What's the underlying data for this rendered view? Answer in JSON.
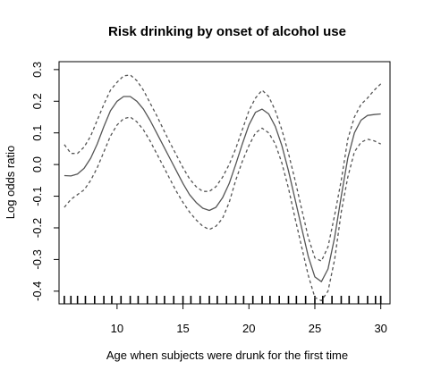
{
  "chart_data": {
    "type": "line",
    "title": "Risk drinking by onset of alcohol use",
    "xlabel": "Age when subjects were drunk for the first time",
    "ylabel": "Log odds ratio",
    "xlim": [
      5.6,
      30.7
    ],
    "ylim": [
      -0.44,
      0.325
    ],
    "x_ticks": [
      10,
      15,
      20,
      25,
      30
    ],
    "x_tick_labels": [
      "10",
      "15",
      "20",
      "25",
      "30"
    ],
    "y_ticks": [
      -0.4,
      -0.3,
      -0.2,
      -0.1,
      0.0,
      0.1,
      0.2,
      0.3
    ],
    "y_tick_labels": [
      "-0.4",
      "-0.3",
      "-0.2",
      "-0.1",
      "0.0",
      "0.1",
      "0.2",
      "0.3"
    ],
    "grid": false,
    "legend": "none",
    "rug_x": [
      6,
      6.5,
      7,
      7.6,
      8.3,
      9,
      9.6,
      10.3,
      11,
      11.6,
      12.3,
      13,
      13.6,
      14.3,
      15,
      15.6,
      16.3,
      17,
      17.6,
      18.3,
      19,
      19.6,
      20.3,
      21,
      21.6,
      22.3,
      23,
      23.6,
      24.3,
      25,
      25.6,
      26.3,
      27,
      27.6,
      28.3,
      29,
      29.6,
      30
    ],
    "series": [
      {
        "style": "solid",
        "color": "#555555",
        "x": [
          6,
          6.5,
          7,
          7.5,
          8,
          8.5,
          9,
          9.5,
          10,
          10.5,
          11,
          11.5,
          12,
          12.5,
          13,
          13.5,
          14,
          14.5,
          15,
          15.5,
          16,
          16.5,
          17,
          17.5,
          18,
          18.5,
          19,
          19.5,
          20,
          20.5,
          21,
          21.5,
          22,
          22.5,
          23,
          23.5,
          24,
          24.5,
          25,
          25.5,
          26,
          26.5,
          27,
          27.5,
          28,
          28.5,
          29,
          29.5,
          30
        ],
        "y": [
          -0.035,
          -0.036,
          -0.03,
          -0.012,
          0.02,
          0.065,
          0.12,
          0.17,
          0.2,
          0.215,
          0.215,
          0.2,
          0.175,
          0.14,
          0.1,
          0.06,
          0.02,
          -0.02,
          -0.06,
          -0.095,
          -0.12,
          -0.138,
          -0.145,
          -0.135,
          -0.105,
          -0.06,
          0.0,
          0.065,
          0.125,
          0.165,
          0.175,
          0.16,
          0.12,
          0.06,
          -0.02,
          -0.11,
          -0.2,
          -0.29,
          -0.355,
          -0.37,
          -0.33,
          -0.23,
          -0.1,
          0.02,
          0.1,
          0.14,
          0.155,
          0.158,
          0.16
        ]
      },
      {
        "style": "dashed",
        "color": "#555555",
        "x": [
          6,
          6.5,
          7,
          7.5,
          8,
          8.5,
          9,
          9.5,
          10,
          10.5,
          11,
          11.5,
          12,
          12.5,
          13,
          13.5,
          14,
          14.5,
          15,
          15.5,
          16,
          16.5,
          17,
          17.5,
          18,
          18.5,
          19,
          19.5,
          20,
          20.5,
          21,
          21.5,
          22,
          22.5,
          23,
          23.5,
          24,
          24.5,
          25,
          25.5,
          26,
          26.5,
          27,
          27.5,
          28,
          28.5,
          29,
          29.5,
          30
        ],
        "y": [
          0.063,
          0.035,
          0.035,
          0.055,
          0.09,
          0.14,
          0.19,
          0.235,
          0.26,
          0.28,
          0.283,
          0.265,
          0.235,
          0.195,
          0.155,
          0.112,
          0.07,
          0.03,
          -0.01,
          -0.045,
          -0.07,
          -0.085,
          -0.085,
          -0.07,
          -0.04,
          0.0,
          0.05,
          0.11,
          0.17,
          0.21,
          0.235,
          0.215,
          0.17,
          0.11,
          0.035,
          -0.05,
          -0.14,
          -0.23,
          -0.295,
          -0.305,
          -0.26,
          -0.16,
          -0.05,
          0.08,
          0.15,
          0.19,
          0.21,
          0.235,
          0.255
        ]
      },
      {
        "style": "dashed",
        "color": "#555555",
        "x": [
          6,
          6.5,
          7,
          7.5,
          8,
          8.5,
          9,
          9.5,
          10,
          10.5,
          11,
          11.5,
          12,
          12.5,
          13,
          13.5,
          14,
          14.5,
          15,
          15.5,
          16,
          16.5,
          17,
          17.5,
          18,
          18.5,
          19,
          19.5,
          20,
          20.5,
          21,
          21.5,
          22,
          22.5,
          23,
          23.5,
          24,
          24.5,
          25,
          25.5,
          26,
          26.5,
          27,
          27.5,
          28,
          28.5,
          29,
          29.5,
          30
        ],
        "y": [
          -0.135,
          -0.11,
          -0.095,
          -0.08,
          -0.05,
          -0.01,
          0.04,
          0.09,
          0.125,
          0.145,
          0.15,
          0.135,
          0.11,
          0.075,
          0.035,
          -0.005,
          -0.045,
          -0.085,
          -0.12,
          -0.15,
          -0.175,
          -0.195,
          -0.205,
          -0.195,
          -0.17,
          -0.12,
          -0.05,
          0.01,
          0.06,
          0.1,
          0.115,
          0.1,
          0.065,
          0.005,
          -0.075,
          -0.17,
          -0.26,
          -0.35,
          -0.42,
          -0.43,
          -0.4,
          -0.3,
          -0.15,
          -0.04,
          0.04,
          0.07,
          0.08,
          0.075,
          0.065
        ]
      }
    ]
  }
}
